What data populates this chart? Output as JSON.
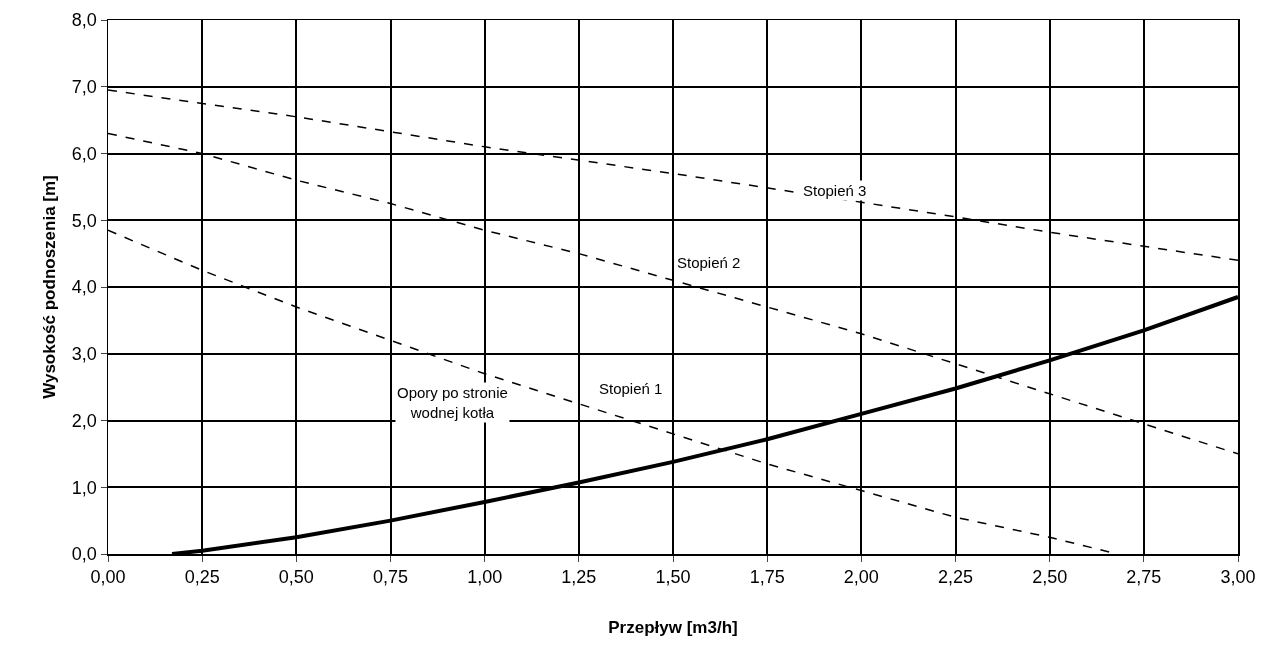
{
  "chart_data": {
    "type": "line",
    "xlabel": "Przepływ [m3/h]",
    "ylabel": "Wysokość podnoszenia [m]",
    "xlim": [
      0,
      3
    ],
    "ylim": [
      0,
      8
    ],
    "xticks": [
      {
        "value": 0,
        "label": "0,00"
      },
      {
        "value": 0.25,
        "label": "0,25"
      },
      {
        "value": 0.5,
        "label": "0,50"
      },
      {
        "value": 0.75,
        "label": "0,75"
      },
      {
        "value": 1,
        "label": "1,00"
      },
      {
        "value": 1.25,
        "label": "1,25"
      },
      {
        "value": 1.5,
        "label": "1,50"
      },
      {
        "value": 1.75,
        "label": "1,75"
      },
      {
        "value": 2,
        "label": "2,00"
      },
      {
        "value": 2.25,
        "label": "2,25"
      },
      {
        "value": 2.5,
        "label": "2,50"
      },
      {
        "value": 2.75,
        "label": "2,75"
      },
      {
        "value": 3,
        "label": "3,00"
      }
    ],
    "yticks": [
      {
        "value": 0,
        "label": "0,0"
      },
      {
        "value": 1,
        "label": "1,0"
      },
      {
        "value": 2,
        "label": "2,0"
      },
      {
        "value": 3,
        "label": "3,0"
      },
      {
        "value": 4,
        "label": "4,0"
      },
      {
        "value": 5,
        "label": "5,0"
      },
      {
        "value": 6,
        "label": "6,0"
      },
      {
        "value": 7,
        "label": "7,0"
      },
      {
        "value": 8,
        "label": "8,0"
      }
    ],
    "grid": true,
    "marker": "none",
    "series": [
      {
        "color": "#000000",
        "line_style": "dashed",
        "x": [
          0,
          0.5,
          1,
          1.5,
          2,
          2.25,
          2.5,
          3
        ],
        "values": [
          6.95,
          6.55,
          6.1,
          5.7,
          5.27,
          5.05,
          4.82,
          4.4
        ]
      },
      {
        "color": "#000000",
        "line_style": "dashed",
        "x": [
          0,
          0.25,
          0.5,
          0.75,
          1,
          1.25,
          1.5,
          1.75,
          2,
          2.25,
          2.5,
          2.75,
          3
        ],
        "values": [
          6.3,
          6.0,
          5.6,
          5.25,
          4.85,
          4.5,
          4.1,
          3.7,
          3.3,
          2.85,
          2.4,
          1.95,
          1.5
        ]
      },
      {
        "color": "#000000",
        "line_style": "dashed",
        "x": [
          0,
          0.25,
          0.5,
          0.75,
          1,
          1.25,
          1.5,
          1.75,
          2,
          2.25,
          2.5,
          2.68
        ],
        "values": [
          4.85,
          4.25,
          3.7,
          3.2,
          2.7,
          2.25,
          1.8,
          1.35,
          0.95,
          0.55,
          0.25,
          0
        ]
      },
      {
        "color": "#000000",
        "line_style": "solid",
        "x": [
          0.17,
          0.25,
          0.5,
          0.75,
          1,
          1.25,
          1.5,
          1.75,
          2,
          2.25,
          2.5,
          2.75,
          3
        ],
        "values": [
          0,
          0.05,
          0.25,
          0.5,
          0.78,
          1.07,
          1.38,
          1.72,
          2.1,
          2.48,
          2.9,
          3.35,
          3.85
        ]
      }
    ],
    "annotations": [
      "Stopień 3",
      "Stopień 2",
      "Stopień 1",
      "Opory po stronie\nwodnej kotła"
    ]
  }
}
